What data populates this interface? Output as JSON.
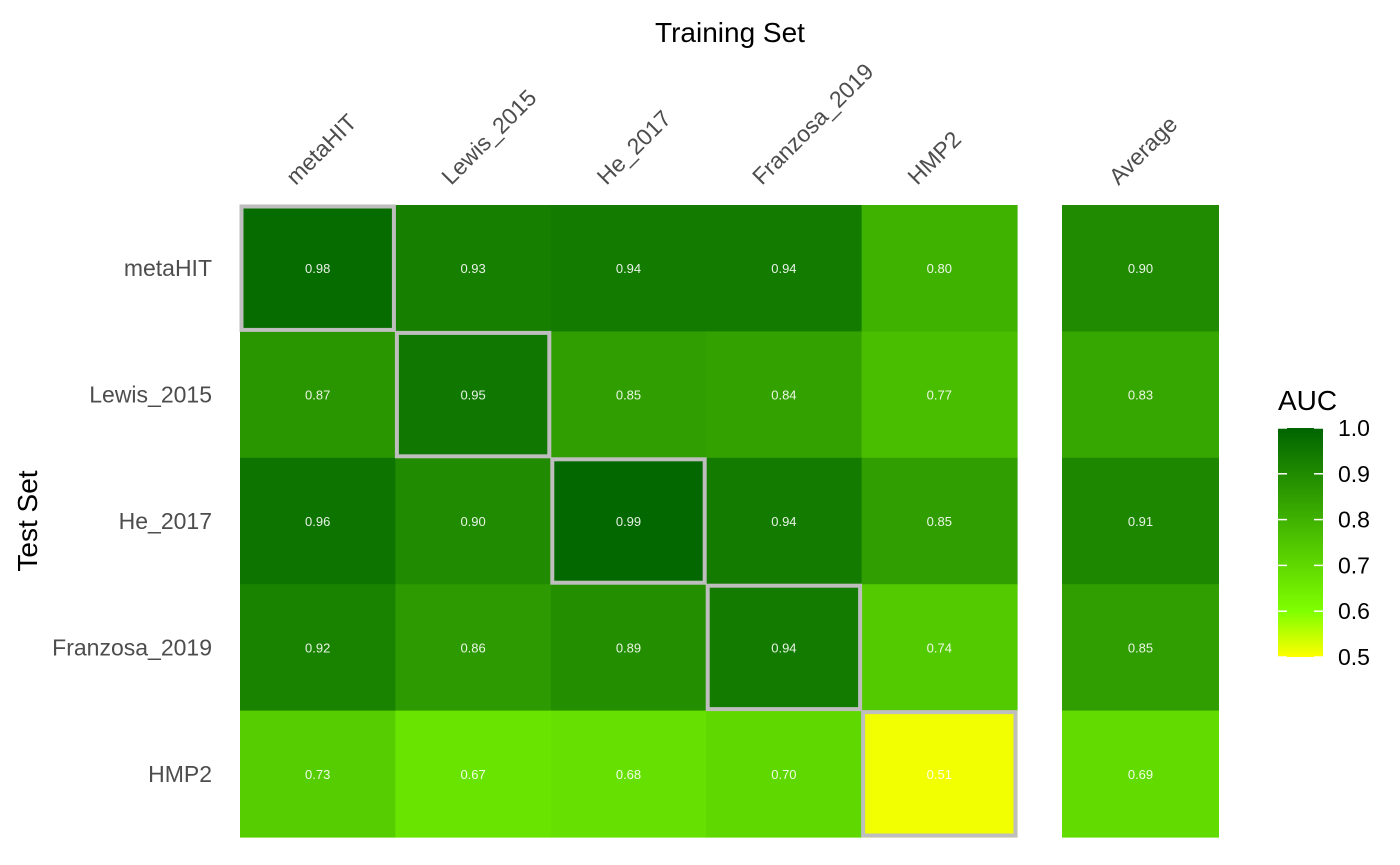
{
  "chart_data": {
    "type": "heatmap",
    "title": "Training Set",
    "xlabel": "Training Set",
    "ylabel": "Test Set",
    "x_categories": [
      "metaHIT",
      "Lewis_2015",
      "He_2017",
      "Franzosa_2019",
      "HMP2"
    ],
    "y_categories": [
      "metaHIT",
      "Lewis_2015",
      "He_2017",
      "Franzosa_2019",
      "HMP2"
    ],
    "values": [
      [
        0.98,
        0.93,
        0.94,
        0.94,
        0.8
      ],
      [
        0.87,
        0.95,
        0.85,
        0.84,
        0.77
      ],
      [
        0.96,
        0.9,
        0.99,
        0.94,
        0.85
      ],
      [
        0.92,
        0.86,
        0.89,
        0.94,
        0.74
      ],
      [
        0.73,
        0.67,
        0.68,
        0.7,
        0.51
      ]
    ],
    "cell_labels": [
      [
        "0.98",
        "0.93",
        "0.94",
        "0.94",
        "0.80"
      ],
      [
        "0.87",
        "0.95",
        "0.85",
        "0.84",
        "0.77"
      ],
      [
        "0.96",
        "0.90",
        "0.99",
        "0.94",
        "0.85"
      ],
      [
        "0.92",
        "0.86",
        "0.89",
        "0.94",
        "0.74"
      ],
      [
        "0.73",
        "0.67",
        "0.68",
        "0.70",
        "0.51"
      ]
    ],
    "highlight_diagonal": true,
    "highlight_color": "#bebebe",
    "average_column": {
      "label": "Average",
      "values": [
        0.9,
        0.83,
        0.91,
        0.85,
        0.69
      ],
      "labels": [
        "0.90",
        "0.83",
        "0.91",
        "0.85",
        "0.69"
      ]
    },
    "colorbar": {
      "title": "AUC",
      "min": 0.5,
      "max": 1.0,
      "ticks": [
        "1.0",
        "0.9",
        "0.8",
        "0.7",
        "0.6",
        "0.5"
      ],
      "tick_values": [
        1.0,
        0.9,
        0.8,
        0.7,
        0.6,
        0.5
      ],
      "colors": [
        "#ffff00",
        "#7fff00",
        "#006400"
      ],
      "color_stops": [
        0.5,
        0.6,
        1.0
      ]
    },
    "legend_position": "right",
    "grid": false
  }
}
